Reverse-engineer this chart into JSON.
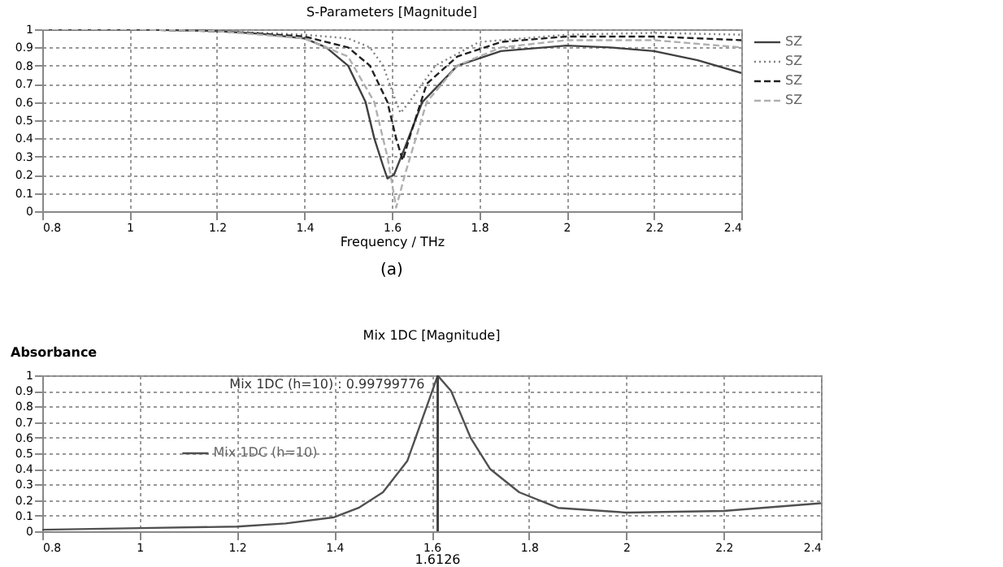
{
  "chart_data": [
    {
      "type": "line",
      "title": "S-Parameters [Magnitude]",
      "xlabel": "Frequency / THz",
      "xlim": [
        0.8,
        2.4
      ],
      "xticks": [
        0.8,
        1,
        1.2,
        1.4,
        1.6,
        1.8,
        2,
        2.2,
        2.4
      ],
      "ylim": [
        0,
        1
      ],
      "yticks": [
        0,
        0.1,
        0.2,
        0.3,
        0.4,
        0.5,
        0.6,
        0.7,
        0.8,
        0.9,
        1
      ],
      "grid": true,
      "legend": "right",
      "annotations": [
        "(a)"
      ],
      "series": [
        {
          "name": "SZ",
          "color": "#404040",
          "line_style": "solid",
          "x": [
            0.8,
            1.0,
            1.2,
            1.3,
            1.4,
            1.45,
            1.5,
            1.54,
            1.56,
            1.58,
            1.59,
            1.605,
            1.63,
            1.67,
            1.75,
            1.85,
            2.0,
            2.1,
            2.2,
            2.3,
            2.4
          ],
          "values": [
            1,
            1,
            0.99,
            0.975,
            0.95,
            0.9,
            0.8,
            0.6,
            0.4,
            0.25,
            0.18,
            0.2,
            0.35,
            0.6,
            0.8,
            0.88,
            0.91,
            0.9,
            0.88,
            0.83,
            0.76
          ]
        },
        {
          "name": "SZ",
          "color": "#808080",
          "line_style": "dotted",
          "x": [
            0.8,
            1.0,
            1.2,
            1.4,
            1.5,
            1.55,
            1.58,
            1.61,
            1.62,
            1.64,
            1.7,
            1.8,
            2.0,
            2.2,
            2.4
          ],
          "values": [
            1,
            1,
            0.99,
            0.97,
            0.95,
            0.9,
            0.8,
            0.6,
            0.54,
            0.6,
            0.8,
            0.93,
            0.97,
            0.98,
            0.97
          ]
        },
        {
          "name": "SZ",
          "color": "#202020",
          "line_style": "dashed",
          "x": [
            0.8,
            1.0,
            1.2,
            1.4,
            1.5,
            1.55,
            1.59,
            1.61,
            1.625,
            1.64,
            1.68,
            1.75,
            1.85,
            2.0,
            2.2,
            2.4
          ],
          "values": [
            1,
            1,
            0.99,
            0.96,
            0.9,
            0.8,
            0.6,
            0.4,
            0.28,
            0.4,
            0.7,
            0.85,
            0.93,
            0.96,
            0.96,
            0.94
          ]
        },
        {
          "name": "SZ",
          "color": "#b0b0b0",
          "line_style": "dashed",
          "x": [
            0.8,
            1.0,
            1.2,
            1.4,
            1.5,
            1.56,
            1.59,
            1.61,
            1.63,
            1.68,
            1.75,
            1.85,
            2.0,
            2.2,
            2.4
          ],
          "values": [
            1,
            1,
            0.99,
            0.95,
            0.85,
            0.6,
            0.3,
            0.02,
            0.2,
            0.6,
            0.8,
            0.9,
            0.94,
            0.94,
            0.9
          ]
        }
      ]
    },
    {
      "type": "line",
      "title": "Mix 1DC [Magnitude]",
      "ylabel": "Absorbance",
      "xlim": [
        0.8,
        2.4
      ],
      "xticks": [
        0.8,
        1,
        1.2,
        1.4,
        1.6,
        1.8,
        2,
        2.2,
        2.4
      ],
      "ylim": [
        0,
        1
      ],
      "yticks": [
        0,
        0.1,
        0.2,
        0.3,
        0.4,
        0.5,
        0.6,
        0.7,
        0.8,
        0.9,
        1
      ],
      "grid": true,
      "legend": "left",
      "ref_lines": [
        {
          "axis": "x",
          "value": 1.6126,
          "label": "1.6126",
          "color": "#404040"
        }
      ],
      "annotations": [
        {
          "text": "Mix 1DC (h=10) : 0.99799776",
          "x": 1.6126,
          "y": 0.99799776
        }
      ],
      "series": [
        {
          "name": "Mix 1DC (h=10)",
          "color": "#505050",
          "line_style": "solid",
          "x": [
            0.8,
            1.0,
            1.2,
            1.3,
            1.4,
            1.45,
            1.5,
            1.55,
            1.59,
            1.6126,
            1.64,
            1.68,
            1.72,
            1.78,
            1.86,
            2.0,
            2.2,
            2.4
          ],
          "values": [
            0.01,
            0.02,
            0.03,
            0.05,
            0.09,
            0.15,
            0.25,
            0.45,
            0.8,
            0.99799776,
            0.9,
            0.6,
            0.4,
            0.25,
            0.15,
            0.12,
            0.13,
            0.18
          ]
        }
      ]
    }
  ]
}
